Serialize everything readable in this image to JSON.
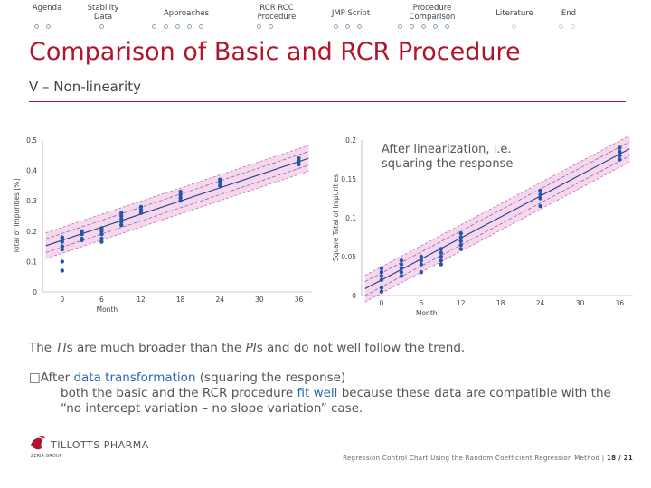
{
  "nav": {
    "items": [
      {
        "label": "Agenda",
        "dots": 2
      },
      {
        "label": "Stability\nData",
        "dots": 1
      },
      {
        "label": "Approaches",
        "dots": 5
      },
      {
        "label": "RCR RCC\nProcedure",
        "dots": 2
      },
      {
        "label": "JMP Script",
        "dots": 3
      },
      {
        "label": "Procedure\nComparison",
        "dots": 5
      },
      {
        "label": "Literature",
        "dots": 1
      },
      {
        "label": "End",
        "dots": 2
      }
    ]
  },
  "slide": {
    "title": "Comparison of Basic and RCR Procedure",
    "subtitle": "V – Non-linearity"
  },
  "chart_data": [
    {
      "type": "scatter",
      "title": "",
      "xlabel": "Month",
      "ylabel": "Total of Impurities [%]",
      "xticks": [
        "0",
        "6",
        "12",
        "18",
        "24",
        "30",
        "36"
      ],
      "yticks": [
        "0",
        "0.1",
        "0.2",
        "0.3",
        "0.4",
        "0.5"
      ],
      "xlim": [
        -3,
        38
      ],
      "ylim": [
        0,
        0.5
      ],
      "fit": {
        "intercept": 0.17,
        "slope": 0.0072
      },
      "x": [
        0,
        0,
        0,
        0,
        0,
        0,
        0,
        3,
        3,
        3,
        3,
        6,
        6,
        6,
        6,
        6,
        9,
        9,
        9,
        9,
        9,
        12,
        12,
        12,
        18,
        18,
        18,
        18,
        24,
        24,
        24,
        36,
        36,
        36
      ],
      "y": [
        0.07,
        0.1,
        0.14,
        0.15,
        0.165,
        0.175,
        0.18,
        0.17,
        0.175,
        0.19,
        0.2,
        0.165,
        0.175,
        0.19,
        0.2,
        0.21,
        0.22,
        0.23,
        0.24,
        0.25,
        0.26,
        0.26,
        0.27,
        0.28,
        0.3,
        0.31,
        0.32,
        0.33,
        0.35,
        0.36,
        0.37,
        0.42,
        0.43,
        0.44
      ]
    },
    {
      "type": "scatter",
      "title": "",
      "xlabel": "Month",
      "ylabel": "Square Total of Impurities",
      "xticks": [
        "0",
        "6",
        "12",
        "18",
        "24",
        "30",
        "36"
      ],
      "yticks": [
        "0",
        "0.05",
        "0.1",
        "0.15",
        "0.2"
      ],
      "xlim": [
        -3,
        38
      ],
      "ylim": [
        0,
        0.2
      ],
      "fit": {
        "intercept": 0.02,
        "slope": 0.0045
      },
      "x": [
        0,
        0,
        0,
        0,
        0,
        0,
        3,
        3,
        3,
        3,
        3,
        6,
        6,
        6,
        6,
        9,
        9,
        9,
        9,
        9,
        12,
        12,
        12,
        12,
        12,
        24,
        24,
        24,
        24,
        36,
        36,
        36,
        36
      ],
      "y": [
        0.005,
        0.01,
        0.02,
        0.025,
        0.03,
        0.035,
        0.025,
        0.03,
        0.035,
        0.04,
        0.045,
        0.03,
        0.04,
        0.045,
        0.05,
        0.04,
        0.045,
        0.05,
        0.055,
        0.06,
        0.06,
        0.065,
        0.07,
        0.075,
        0.08,
        0.115,
        0.125,
        0.13,
        0.135,
        0.175,
        0.18,
        0.185,
        0.19
      ]
    }
  ],
  "annotation": "After linearization, i.e. squaring the response",
  "body": {
    "line1_pre": "The ",
    "line1_ti": "TI",
    "line1_mid": "s are much broader than the ",
    "line1_pi": "PI",
    "line1_post": "s and do not well follow the trend.",
    "bullet_marker": "□",
    "bullet_lead": "After ",
    "bullet_hl1": "data transformation",
    "bullet_rest1": " (squaring the response)",
    "bullet_line2a": "both the basic and the RCR procedure ",
    "bullet_hl2": "fit well",
    "bullet_line2b": " because these data are compatible with the “no intercept variation – no slope variation” case."
  },
  "logo": {
    "name": "TILLOTTS PHARMA",
    "sub": "ZERIA GROUP"
  },
  "footer": {
    "text": "Regression Control Chart Using the Random Coefficient Regression Method |",
    "page": "18 / 21"
  },
  "colors": {
    "accent": "#b0152c",
    "points": "#2456a8",
    "band": "#f7d6ee"
  }
}
